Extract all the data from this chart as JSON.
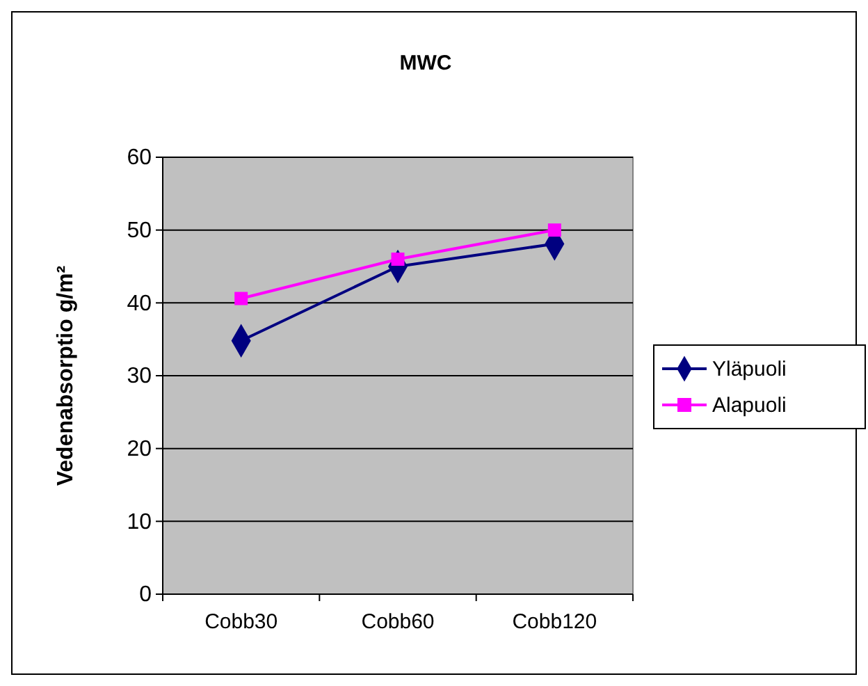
{
  "chart_data": {
    "type": "line",
    "title": "MWC",
    "ylabel": "Vedenabsorptio g/m²",
    "categories": [
      "Cobb30",
      "Cobb60",
      "Cobb120"
    ],
    "series": [
      {
        "name": "Yläpuoli",
        "color": "#000080",
        "values": [
          34.8,
          45,
          48.1
        ],
        "marker": "diamond"
      },
      {
        "name": "Alapuoli",
        "color": "#ff00ff",
        "values": [
          40.6,
          46,
          50
        ],
        "marker": "square"
      }
    ],
    "ylim": [
      0,
      60
    ],
    "yticks": [
      0,
      10,
      20,
      30,
      40,
      50,
      60
    ],
    "grid": "y",
    "legend": "right",
    "line_style": "solid"
  }
}
